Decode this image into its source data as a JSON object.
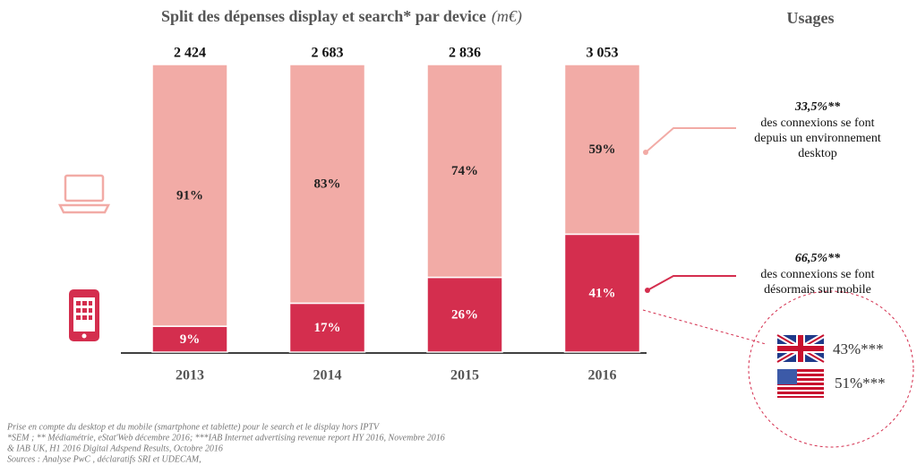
{
  "chart_data": {
    "type": "stacked_bar",
    "title": "Split des dépenses display et search* par device",
    "title_unit": "(m€)",
    "categories": [
      "2013",
      "2014",
      "2015",
      "2016"
    ],
    "ylim": [
      0,
      100
    ],
    "series": [
      {
        "name": "mobile",
        "color": "#d42e4e",
        "values": [
          9,
          17,
          26,
          41
        ],
        "value_labels": [
          "9%",
          "17%",
          "26%",
          "41%"
        ]
      },
      {
        "name": "desktop",
        "color": "#f2aba6",
        "values": [
          91,
          83,
          74,
          59
        ],
        "value_labels": [
          "91%",
          "83%",
          "74%",
          "59%"
        ]
      }
    ],
    "totals": {
      "values": [
        2424,
        2683,
        2836,
        3053
      ],
      "value_labels": [
        "2 424",
        "2 683",
        "2 836",
        "3 053"
      ]
    }
  },
  "usages": {
    "title": "Usages",
    "desktop": {
      "value": "33,5%**",
      "lines": [
        "des connexions se font",
        "depuis un  environnement",
        "desktop"
      ]
    },
    "mobile": {
      "value": "66,5%**",
      "lines": [
        "des connexions se font",
        "désormais sur mobile"
      ]
    },
    "uk": "43%***",
    "us": "51%***"
  },
  "footnotes": [
    "Prise en compte du desktop et du mobile (smartphone et tablette)  pour le search et le display hors IPTV",
    "*SEM ; ** Médiamétrie, eStat'Web décembre 2016; ***IAB Internet advertising revenue report HY 2016, Novembre 2016",
    "&  IAB UK, H1 2016 Digital Adspend Results, Octobre 2016",
    "Sources : Analyse PwC , déclaratifs SRI et UDECAM,"
  ]
}
